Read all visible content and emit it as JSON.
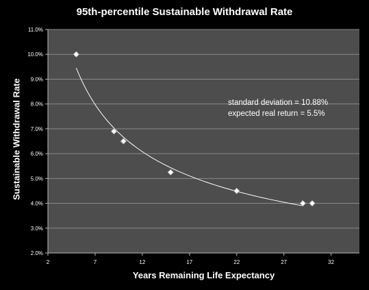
{
  "chart_data": {
    "type": "scatter",
    "title": "95th-percentile Sustainable Withdrawal Rate",
    "xlabel": "Years Remaining Life Expectancy",
    "ylabel": "Sustainable Withdrawal Rate",
    "xlim": [
      2,
      35
    ],
    "ylim": [
      2.0,
      11.0
    ],
    "x_ticks": [
      2,
      7,
      12,
      17,
      22,
      27,
      32
    ],
    "y_ticks": [
      2.0,
      3.0,
      4.0,
      5.0,
      6.0,
      7.0,
      8.0,
      9.0,
      10.0,
      11.0
    ],
    "y_tick_labels": [
      "2.0%",
      "3.0%",
      "4.0%",
      "5.0%",
      "6.0%",
      "7.0%",
      "8.0%",
      "9.0%",
      "10.0%",
      "11.0%"
    ],
    "grid": "horizontal",
    "series": [
      {
        "marker": "diamond",
        "color": "#ffffff",
        "x": [
          5,
          9,
          10,
          15,
          22,
          29,
          30
        ],
        "y": [
          10.0,
          6.9,
          6.5,
          5.25,
          4.5,
          4.0,
          4.0
        ]
      }
    ],
    "trendline": {
      "color": "#ffffff",
      "x_range": [
        5,
        29
      ],
      "y_at_start": 9.45,
      "y_at_end": 3.9
    },
    "annotations": [
      "standard deviation = 10.88%",
      "expected real return = 5.5%"
    ],
    "colors": {
      "background": "#000000",
      "plot_area": "#4d4d4d",
      "gridline": "#8a8a8a",
      "text": "#ffffff"
    }
  }
}
